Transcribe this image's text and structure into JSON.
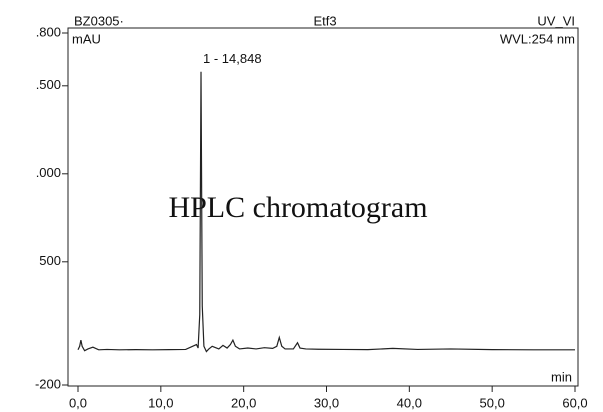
{
  "chart_data": {
    "type": "line",
    "title": "Etf3",
    "sample": "BZ0305·",
    "channel": "UV_VI",
    "y_label": "mAU",
    "wavelength": "WVL:254 nm",
    "x_label": "min",
    "peak_label": "1 - 14,848",
    "overlay": "HPLC chromatogram",
    "x": [
      0,
      0.2,
      0.35,
      0.5,
      0.8,
      1.2,
      1.8,
      2.5,
      3.5,
      5,
      7,
      9,
      11,
      13,
      14.3,
      14.5,
      14.7,
      14.85,
      15.0,
      15.2,
      15.5,
      15.8,
      16.2,
      17,
      17.5,
      18,
      18.4,
      18.7,
      19,
      19.5,
      20.5,
      21.5,
      22.5,
      23.5,
      24,
      24.3,
      24.6,
      25,
      26,
      26.5,
      26.8,
      27.5,
      29,
      32,
      35,
      38,
      41,
      45,
      50,
      55,
      60
    ],
    "series": [
      {
        "color": "#222222",
        "values": [
          0,
          20,
          55,
          20,
          -5,
          5,
          15,
          0,
          2,
          0,
          1,
          0,
          1,
          2,
          30,
          10,
          200,
          1580,
          250,
          20,
          -10,
          5,
          20,
          5,
          25,
          10,
          30,
          55,
          20,
          5,
          10,
          5,
          12,
          8,
          20,
          70,
          20,
          5,
          5,
          40,
          10,
          5,
          3,
          2,
          1,
          8,
          2,
          5,
          1,
          0,
          0
        ]
      }
    ],
    "xlim": [
      0,
      60
    ],
    "xticks": [
      {
        "value": 0,
        "label": "0,0"
      },
      {
        "value": 10,
        "label": "10,0"
      },
      {
        "value": 20,
        "label": "20,0"
      },
      {
        "value": 30,
        "label": "30,0"
      },
      {
        "value": 40,
        "label": "40,0"
      },
      {
        "value": 50,
        "label": "50,0"
      },
      {
        "value": 60,
        "label": "60,0"
      }
    ],
    "ylim": [
      -200,
      1800
    ],
    "yticks": [
      -200,
      500,
      {
        "value": 1000,
        "label": ".000"
      },
      {
        "value": 1500,
        "label": ".500"
      },
      {
        "value": 1800,
        "label": ".800"
      }
    ]
  }
}
